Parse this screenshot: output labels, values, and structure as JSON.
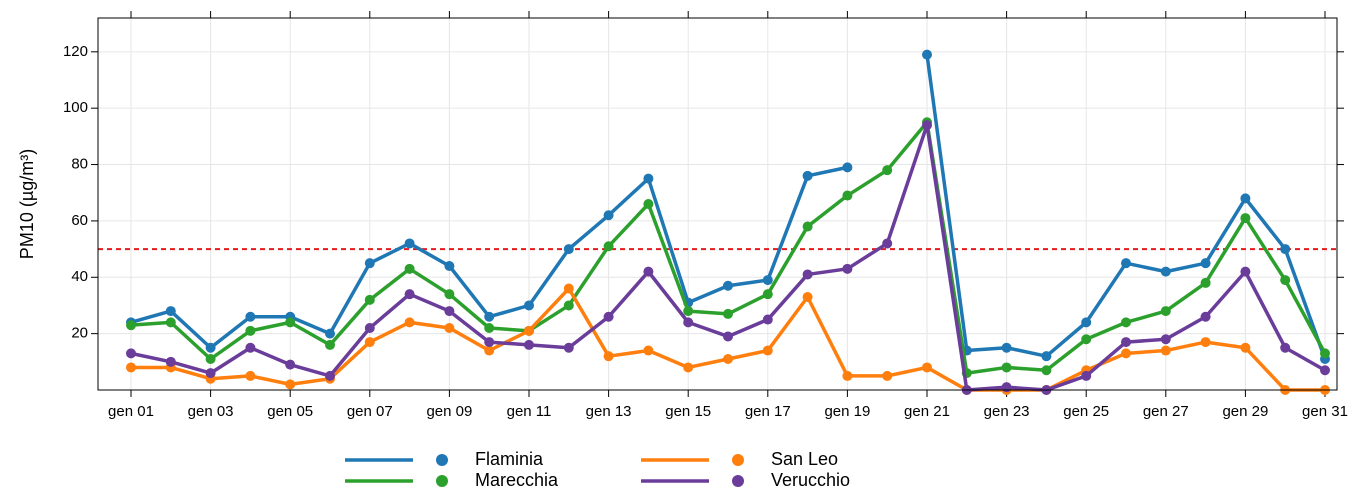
{
  "chart_data": {
    "type": "line",
    "y_label": "PM10 (µg/m³)",
    "categories": [
      "gen 01",
      null,
      "gen 03",
      null,
      "gen 05",
      null,
      "gen 07",
      null,
      "gen 09",
      null,
      "gen 11",
      null,
      "gen 13",
      null,
      "gen 15",
      null,
      "gen 17",
      null,
      "gen 19",
      null,
      "gen 21",
      null,
      "gen 23",
      null,
      "gen 25",
      null,
      "gen 27",
      null,
      "gen 29",
      null,
      "gen 31"
    ],
    "series": [
      {
        "name": "Flaminia",
        "color": "#1f77b4",
        "values": [
          24,
          28,
          15,
          26,
          26,
          20,
          45,
          52,
          44,
          26,
          30,
          50,
          62,
          75,
          31,
          37,
          39,
          76,
          79,
          null,
          119,
          14,
          15,
          12,
          24,
          45,
          42,
          45,
          68,
          50,
          11
        ]
      },
      {
        "name": "Marecchia",
        "color": "#2ca02c",
        "values": [
          23,
          24,
          11,
          21,
          24,
          16,
          32,
          43,
          34,
          22,
          21,
          30,
          51,
          66,
          28,
          27,
          34,
          58,
          69,
          78,
          95,
          6,
          8,
          7,
          18,
          24,
          28,
          38,
          61,
          39,
          13
        ]
      },
      {
        "name": "San Leo",
        "color": "#ff7f0e",
        "values": [
          8,
          8,
          4,
          5,
          2,
          4,
          17,
          24,
          22,
          14,
          21,
          36,
          12,
          14,
          8,
          11,
          14,
          33,
          5,
          5,
          8,
          0,
          0,
          0,
          7,
          13,
          14,
          17,
          15,
          0,
          0
        ]
      },
      {
        "name": "Verucchio",
        "color": "#6a3d9a",
        "values": [
          13,
          10,
          6,
          15,
          9,
          5,
          22,
          34,
          28,
          17,
          16,
          15,
          26,
          42,
          24,
          19,
          25,
          41,
          43,
          52,
          94,
          0,
          1,
          0,
          5,
          17,
          18,
          26,
          42,
          15,
          7
        ]
      }
    ],
    "ylim": [
      0,
      132
    ],
    "yticks": [
      20,
      40,
      60,
      80,
      100,
      120
    ],
    "grid": true,
    "reference_line": {
      "value": 50,
      "color": "#e41a1c"
    },
    "legend": "bottom"
  }
}
